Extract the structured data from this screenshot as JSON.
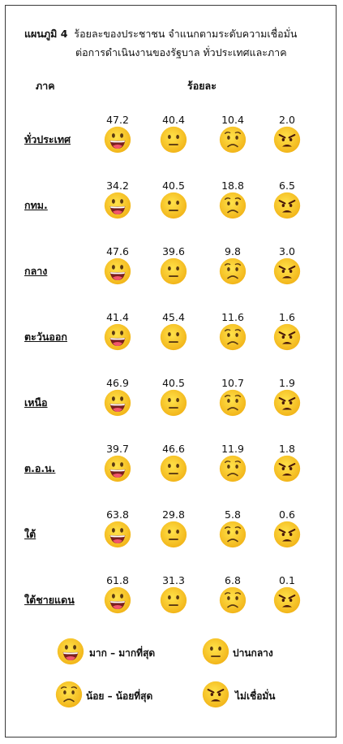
{
  "chart_data": {
    "type": "table",
    "title_prefix": "แผนภูมิ 4",
    "title_line1": "ร้อยละของประชาชน  จำแนกตามระดับความเชื่อมั่น",
    "title_line2": "ต่อการดำเนินงานของรัฐบาล  ทั่วประเทศและภาค",
    "row_header": "ภาค",
    "value_header": "ร้อยละ",
    "categories": [
      "มาก – มากที่สุด",
      "ปานกลาง",
      "น้อย – น้อยที่สุด",
      "ไม่เชื่อมั่น"
    ],
    "rows": [
      {
        "region": "ทั่วประเทศ",
        "values": [
          "47.2",
          "40.4",
          "10.4",
          "2.0"
        ]
      },
      {
        "region": "กทม.",
        "values": [
          "34.2",
          "40.5",
          "18.8",
          "6.5"
        ]
      },
      {
        "region": "กลาง",
        "values": [
          "47.6",
          "39.6",
          "9.8",
          "3.0"
        ]
      },
      {
        "region": "ตะวันออก",
        "values": [
          "41.4",
          "45.4",
          "11.6",
          "1.6"
        ]
      },
      {
        "region": "เหนือ",
        "values": [
          "46.9",
          "40.5",
          "10.7",
          "1.9"
        ]
      },
      {
        "region": "ต.อ.น.",
        "values": [
          "39.7",
          "46.6",
          "11.9",
          "1.8"
        ]
      },
      {
        "region": "ใต้",
        "values": [
          "63.8",
          "29.8",
          "5.8",
          "0.6"
        ]
      },
      {
        "region": "ใต้ชายแดน",
        "values": [
          "61.8",
          "31.3",
          "6.8",
          "0.1"
        ]
      }
    ],
    "legend": [
      {
        "label": "มาก – มากที่สุด",
        "icon": "laughing-face-icon"
      },
      {
        "label": "ปานกลาง",
        "icon": "neutral-face-icon"
      },
      {
        "label": "น้อย – น้อยที่สุด",
        "icon": "worried-face-icon"
      },
      {
        "label": "ไม่เชื่อมั่น",
        "icon": "angry-face-icon"
      }
    ]
  }
}
